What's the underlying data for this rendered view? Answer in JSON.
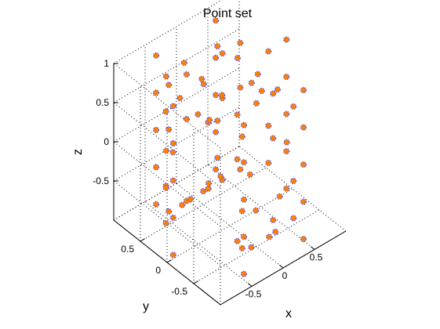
{
  "chart_data": {
    "type": "scatter",
    "title": "Point set",
    "xlabel": "x",
    "ylabel": "y",
    "zlabel": "z",
    "view": "3d",
    "grid": true,
    "marker_fill": "#ff8000",
    "marker_edge": "#5050ff",
    "xlim": [
      -1,
      1
    ],
    "ylim": [
      -1,
      1
    ],
    "zlim": [
      -1,
      1
    ],
    "x_ticks": [
      {
        "value": -0.5,
        "label": "-0.5"
      },
      {
        "value": 0,
        "label": "0"
      },
      {
        "value": 0.5,
        "label": "0.5"
      }
    ],
    "y_ticks": [
      {
        "value": 0.5,
        "label": "0.5"
      },
      {
        "value": 0,
        "label": "0"
      },
      {
        "value": -0.5,
        "label": "-0.5"
      }
    ],
    "z_ticks": [
      {
        "value": 1,
        "label": "1"
      },
      {
        "value": 0.5,
        "label": "0.5"
      },
      {
        "value": 0,
        "label": "0"
      },
      {
        "value": -0.5,
        "label": "-0.5"
      }
    ],
    "points": {
      "x": [
        0.95,
        0.5,
        -0.5,
        -0.95,
        -0.5,
        0.5,
        0.95,
        0.5,
        -0.5,
        -0.95,
        -0.5,
        0.5,
        0.95,
        0.5,
        -0.5,
        -0.95,
        -0.5,
        0.5,
        0.95,
        0.5,
        -0.5,
        -0.95,
        -0.5,
        0.5,
        0.95,
        0.5,
        -0.5,
        -0.95,
        -0.5,
        0.5,
        0.86,
        0.43,
        -0.43,
        -0.86,
        -0.43,
        0.43,
        0.86,
        0.43,
        -0.43,
        -0.86,
        -0.43,
        0.43,
        0.86,
        0.43,
        -0.43,
        -0.86,
        -0.43,
        0.43,
        0.6,
        0.3,
        -0.3,
        -0.6,
        -0.3,
        0.3,
        0.6,
        0.3,
        -0.3,
        -0.6,
        -0.3,
        0.3,
        0.6,
        0.3,
        -0.3,
        -0.6,
        -0.3,
        0.3,
        0.3,
        -0.3,
        0.3,
        -0.3,
        0.15,
        -0.15,
        0.15,
        -0.15,
        0.45,
        -0.45,
        0.45,
        -0.45,
        0.1,
        -0.1,
        0.7,
        -0.7,
        0.7,
        -0.7,
        0.2,
        -0.2,
        0.2,
        -0.2,
        0,
        0,
        0.8,
        -0.8,
        0,
        0
      ],
      "y": [
        0,
        0.866,
        0.866,
        0,
        -0.866,
        -0.866,
        0,
        0.866,
        0.866,
        0,
        -0.866,
        -0.866,
        0,
        0.866,
        0.866,
        0,
        -0.866,
        -0.866,
        0,
        0.866,
        0.866,
        0,
        -0.866,
        -0.866,
        0,
        0.866,
        0.866,
        0,
        -0.866,
        -0.866,
        0.25,
        0.75,
        0.75,
        0.25,
        -0.75,
        -0.75,
        0.25,
        0.75,
        0.75,
        0.25,
        -0.75,
        -0.75,
        0.25,
        0.75,
        0.75,
        0.25,
        -0.75,
        -0.75,
        0.5,
        0.5,
        0.5,
        0.5,
        -0.5,
        -0.5,
        0.5,
        0.5,
        0.5,
        0.5,
        -0.5,
        -0.5,
        0.5,
        0.5,
        0.5,
        0.5,
        -0.5,
        -0.5,
        0.2,
        0.2,
        -0.2,
        -0.2,
        0.6,
        0.6,
        -0.6,
        -0.6,
        0.1,
        0.1,
        -0.1,
        -0.1,
        0.3,
        0.3,
        0.3,
        0.3,
        -0.3,
        -0.3,
        0.75,
        0.75,
        -0.75,
        -0.75,
        0.9,
        -0.9,
        0,
        0,
        0.4,
        -0.4
      ],
      "z": [
        1,
        1,
        1,
        1,
        1,
        1,
        0.5,
        0.5,
        0.5,
        0.5,
        0.5,
        0.5,
        0,
        0,
        0,
        0,
        0,
        0,
        -0.5,
        -0.5,
        -0.5,
        -0.5,
        -0.5,
        -0.5,
        -1,
        -1,
        -1,
        -1,
        -1,
        -1,
        0.75,
        0.75,
        0.75,
        0.75,
        0.75,
        0.75,
        -0.25,
        -0.25,
        -0.25,
        -0.25,
        -0.25,
        -0.25,
        -0.75,
        -0.75,
        -0.75,
        -0.75,
        -0.75,
        -0.75,
        0.85,
        0.85,
        0.85,
        0.85,
        0.85,
        0.85,
        0.25,
        0.25,
        0.25,
        0.25,
        0.25,
        0.25,
        -0.85,
        -0.85,
        -0.85,
        -0.85,
        -0.85,
        -0.85,
        0.95,
        0.95,
        0.95,
        0.95,
        -0.95,
        -0.95,
        -0.95,
        -0.95,
        0.6,
        0.6,
        0.6,
        0.6,
        -0.6,
        -0.6,
        0.1,
        0.1,
        -0.1,
        -0.1,
        0.35,
        0.35,
        -0.35,
        -0.35,
        0.65,
        -0.65,
        0.4,
        -0.4,
        0.15,
        -0.15
      ]
    }
  }
}
